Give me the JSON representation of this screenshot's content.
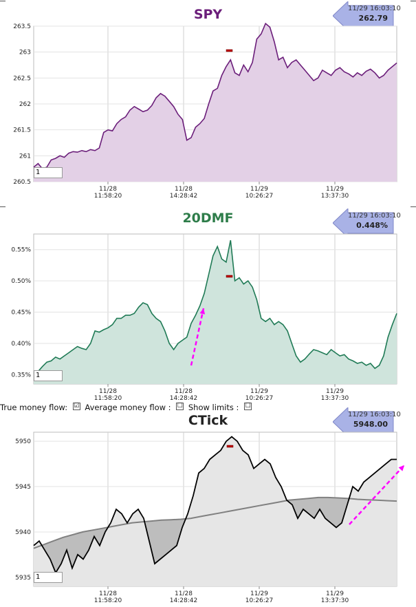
{
  "colors": {
    "spy_line": "#6b1e7a",
    "spy_fill": "#e3d0e6",
    "dmf_line": "#1f7a55",
    "dmf_fill": "#cfe4dc",
    "ctick_line": "#000000",
    "ctick_fill_light": "#e6e6e6",
    "ctick_fill_dark": "#bdbdbd",
    "ctick_avg": "#808080",
    "trend_arrow": "#ff00ff",
    "title_spy": "#6b1e7a",
    "title_dmf": "#2e7d4a",
    "title_ctick": "#222222",
    "badge": "#a9b2e6"
  },
  "panels": {
    "spy": {
      "title": "SPY",
      "badge_time": "11/29 16:03:10",
      "badge_value": "262.79",
      "input_value": "1"
    },
    "dmf": {
      "title": "20DMF",
      "badge_time": "11/29 16:03:10",
      "badge_value": "0.448%",
      "input_value": "1"
    },
    "ctick": {
      "title": "CTick",
      "badge_time": "11/29 16:03:10",
      "badge_value": "5948.00",
      "input_value": "1"
    }
  },
  "controls": {
    "true_money_flow_label": "True money flow:",
    "true_money_flow_checked": "☑",
    "average_money_flow_label": "Average money flow :",
    "average_money_flow_checked": "☐",
    "show_limits_label": "Show limits :",
    "show_limits_checked": "☐"
  },
  "chart_data": [
    {
      "type": "area",
      "title": "SPY",
      "x_ticks": [
        {
          "date": "11/28",
          "time": "11:58:20"
        },
        {
          "date": "11/28",
          "time": "14:28:42"
        },
        {
          "date": "11/29",
          "time": "10:26:27"
        },
        {
          "date": "11/29",
          "time": "13:37:30"
        }
      ],
      "y_ticks": [
        "260.5",
        "261",
        "261.5",
        "262",
        "262.5",
        "263",
        "263.5"
      ],
      "ylim": [
        260.5,
        263.5
      ],
      "values": [
        260.78,
        260.85,
        260.75,
        260.78,
        260.92,
        260.95,
        261,
        260.97,
        261.05,
        261.08,
        261.07,
        261.1,
        261.08,
        261.12,
        261.1,
        261.15,
        261.45,
        261.5,
        261.48,
        261.62,
        261.7,
        261.75,
        261.88,
        261.95,
        261.9,
        261.85,
        261.88,
        261.97,
        262.12,
        262.2,
        262.15,
        262.05,
        261.95,
        261.8,
        261.7,
        261.3,
        261.35,
        261.55,
        261.62,
        261.72,
        262,
        262.25,
        262.3,
        262.55,
        262.72,
        262.85,
        262.6,
        262.55,
        262.75,
        262.62,
        262.8,
        263.25,
        263.35,
        263.55,
        263.48,
        263.2,
        262.85,
        262.9,
        262.7,
        262.8,
        262.85,
        262.75,
        262.65,
        262.55,
        262.45,
        262.5,
        262.65,
        262.6,
        262.55,
        262.65,
        262.7,
        262.62,
        262.58,
        262.52,
        262.6,
        262.55,
        262.63,
        262.67,
        262.6,
        262.5,
        262.55,
        262.65,
        262.72,
        262.79
      ]
    },
    {
      "type": "area",
      "title": "20DMF",
      "x_ticks": [
        {
          "date": "11/28",
          "time": "11:58:20"
        },
        {
          "date": "11/28",
          "time": "14:28:42"
        },
        {
          "date": "11/29",
          "time": "10:26:27"
        },
        {
          "date": "11/29",
          "time": "13:37:30"
        }
      ],
      "y_ticks": [
        "0.35%",
        "0.40%",
        "0.45%",
        "0.50%",
        "0.55%"
      ],
      "ylim": [
        0.335,
        0.575
      ],
      "values": [
        0.352,
        0.355,
        0.363,
        0.37,
        0.372,
        0.378,
        0.375,
        0.38,
        0.385,
        0.39,
        0.395,
        0.392,
        0.39,
        0.4,
        0.42,
        0.418,
        0.422,
        0.425,
        0.43,
        0.44,
        0.44,
        0.445,
        0.445,
        0.448,
        0.458,
        0.465,
        0.462,
        0.448,
        0.44,
        0.435,
        0.42,
        0.4,
        0.39,
        0.4,
        0.405,
        0.41,
        0.432,
        0.445,
        0.46,
        0.48,
        0.51,
        0.54,
        0.555,
        0.535,
        0.53,
        0.565,
        0.5,
        0.505,
        0.495,
        0.5,
        0.49,
        0.47,
        0.44,
        0.435,
        0.44,
        0.43,
        0.435,
        0.43,
        0.42,
        0.4,
        0.38,
        0.37,
        0.375,
        0.383,
        0.39,
        0.388,
        0.385,
        0.382,
        0.39,
        0.385,
        0.38,
        0.382,
        0.375,
        0.372,
        0.368,
        0.37,
        0.365,
        0.368,
        0.36,
        0.365,
        0.38,
        0.41,
        0.43,
        0.448
      ]
    },
    {
      "type": "area",
      "title": "CTick",
      "x_ticks": [
        {
          "date": "11/28",
          "time": "11:58:20"
        },
        {
          "date": "11/28",
          "time": "14:28:42"
        },
        {
          "date": "11/29",
          "time": "10:26:27"
        },
        {
          "date": "11/29",
          "time": "13:37:30"
        }
      ],
      "y_ticks": [
        "5935",
        "5940",
        "5945",
        "5950"
      ],
      "ylim": [
        5934,
        5951
      ],
      "values": [
        5938.5,
        5939,
        5938,
        5937,
        5935.5,
        5936.5,
        5938,
        5936,
        5937.5,
        5937,
        5938,
        5939.5,
        5938.5,
        5940,
        5941,
        5942.5,
        5942,
        5941,
        5942,
        5942.5,
        5941.5,
        5939,
        5936.5,
        5937,
        5937.5,
        5938,
        5938.5,
        5940.5,
        5942,
        5944,
        5946.5,
        5947,
        5948,
        5948.5,
        5949,
        5950,
        5950.5,
        5950,
        5949,
        5948.5,
        5947,
        5947.5,
        5948,
        5947.5,
        5946,
        5945,
        5943.5,
        5943,
        5941.5,
        5942.5,
        5942,
        5941.5,
        5942.5,
        5941.5,
        5941,
        5940.5,
        5941,
        5943,
        5945,
        5944.5,
        5945.5,
        5946,
        5946.5,
        5947,
        5947.5,
        5948,
        5948
      ],
      "avg_values": [
        5938.2,
        5938.6,
        5939,
        5939.4,
        5939.7,
        5940,
        5940.2,
        5940.4,
        5940.6,
        5940.8,
        5941,
        5941.1,
        5941.2,
        5941.3,
        5941.35,
        5941.4,
        5941.5,
        5941.7,
        5941.9,
        5942.1,
        5942.3,
        5942.5,
        5942.7,
        5942.9,
        5943.1,
        5943.3,
        5943.5,
        5943.6,
        5943.7,
        5943.8,
        5943.8,
        5943.75,
        5943.7,
        5943.6,
        5943.55,
        5943.5,
        5943.45,
        5943.4
      ]
    }
  ]
}
